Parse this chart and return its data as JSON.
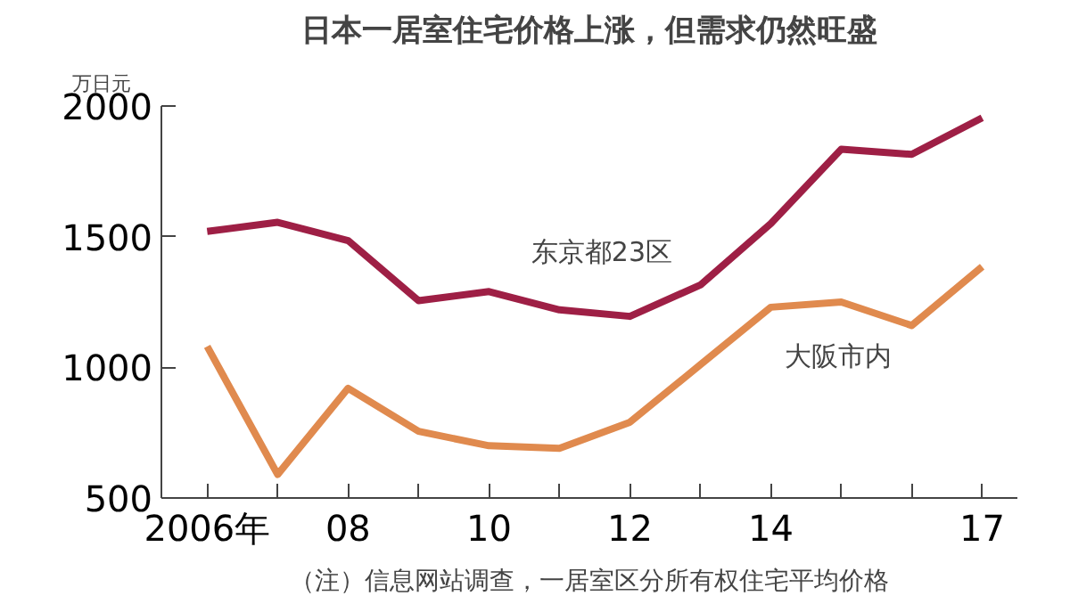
{
  "chart_data": {
    "type": "line",
    "title": "日本一居室住宅价格上涨，但需求仍然旺盛",
    "ylabel": "万日元",
    "x": [
      2006,
      2007,
      2008,
      2009,
      2010,
      2011,
      2012,
      2013,
      2014,
      2015,
      2016,
      2017
    ],
    "series": [
      {
        "name": "东京都23区",
        "color": "#9e1f45",
        "values": [
          1520,
          1555,
          1485,
          1255,
          1290,
          1220,
          1195,
          1315,
          1550,
          1835,
          1815,
          1955
        ]
      },
      {
        "name": "大阪市内",
        "color": "#e08a4e",
        "values": [
          1080,
          590,
          920,
          755,
          700,
          690,
          790,
          1010,
          1230,
          1250,
          1160,
          1385
        ]
      }
    ],
    "xlim": [
      2005.35,
      2017.5
    ],
    "xticks": [
      {
        "value": 2006,
        "label": "2006年"
      },
      {
        "value": 2007,
        "label": null
      },
      {
        "value": 2008,
        "label": "08"
      },
      {
        "value": 2009,
        "label": null
      },
      {
        "value": 2010,
        "label": "10"
      },
      {
        "value": 2011,
        "label": null
      },
      {
        "value": 2012,
        "label": "12"
      },
      {
        "value": 2013,
        "label": null
      },
      {
        "value": 2014,
        "label": "14"
      },
      {
        "value": 2015,
        "label": null
      },
      {
        "value": 2016,
        "label": null
      },
      {
        "value": 2017,
        "label": "17"
      }
    ],
    "ylim": [
      500,
      2000
    ],
    "yticks": [
      500,
      1000,
      1500,
      2000
    ],
    "grid": false,
    "marker": "none",
    "line_style": "solid",
    "annotations": [
      "（注）信息网站调查，一居室区分所有权住宅平均价格"
    ]
  }
}
